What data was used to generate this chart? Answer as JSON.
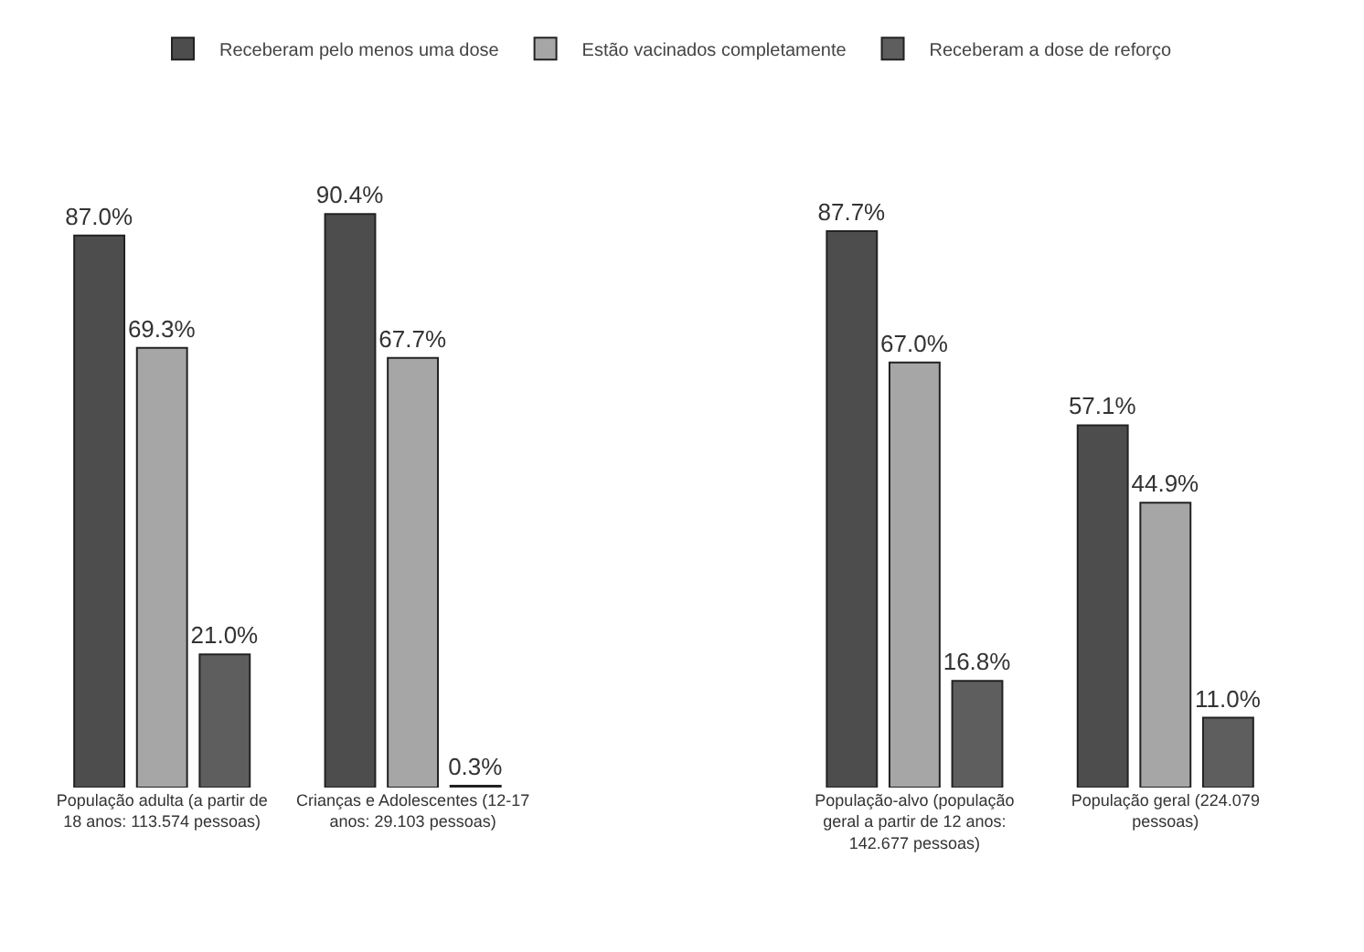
{
  "chart_data": {
    "type": "bar",
    "categories": [
      "População adulta (a partir de 18 anos: 113.574 pessoas)",
      "Crianças e Adolescentes (12-17 anos: 29.103 pessoas)",
      null,
      "População-alvo (população geral a partir de 12 anos: 142.677 pessoas)",
      "População geral (224.079 pessoas)"
    ],
    "series": [
      {
        "name": "Receberam pelo menos uma dose",
        "color": "#4d4d4d",
        "values": [
          87.0,
          90.4,
          null,
          87.7,
          57.1
        ],
        "value_labels": [
          "87.0%",
          "90.4%",
          null,
          "87.7%",
          "57.1%"
        ]
      },
      {
        "name": "Estão vacinados completamente",
        "color": "#a6a6a6",
        "values": [
          69.3,
          67.7,
          null,
          67.0,
          44.9
        ],
        "value_labels": [
          "69.3%",
          "67.7%",
          null,
          "67.0%",
          "44.9%"
        ]
      },
      {
        "name": "Receberam a dose de reforço",
        "color": "#5e5e5e",
        "values": [
          21.0,
          0.3,
          null,
          16.8,
          11.0
        ],
        "value_labels": [
          "21.0%",
          "0.3%",
          null,
          "16.8%",
          "11.0%"
        ]
      }
    ],
    "legend": "top"
  }
}
